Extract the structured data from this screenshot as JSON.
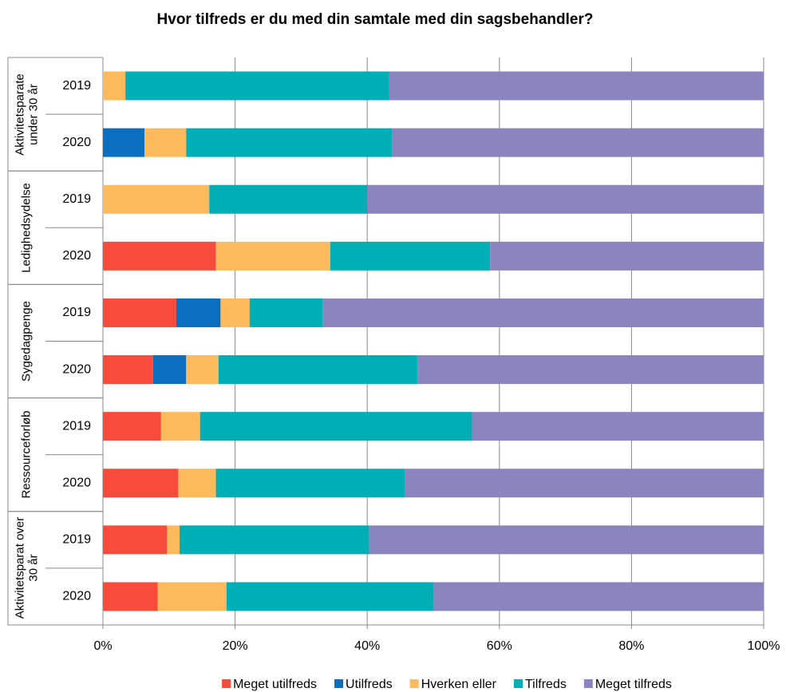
{
  "chart_data": {
    "type": "stacked-barh",
    "title": "Hvor tilfreds er du med din samtale med din sagsbehandler?",
    "groups": [
      {
        "name": "Aktivitetsparate under 30 år",
        "categories": [
          "2019",
          "2020"
        ]
      },
      {
        "name": "Ledighedsydelse",
        "categories": [
          "2019",
          "2020"
        ]
      },
      {
        "name": "Sygedagpenge",
        "categories": [
          "2019",
          "2020"
        ]
      },
      {
        "name": "Ressourceforløb",
        "categories": [
          "2019",
          "2020"
        ]
      },
      {
        "name": "Aktivitetsparat over 30 år",
        "categories": [
          "2019",
          "2020"
        ]
      }
    ],
    "series": [
      {
        "name": "Meget utilfreds",
        "color": "#f94b3b",
        "values": [
          0,
          0,
          0,
          17.1,
          11.1,
          7.6,
          8.8,
          11.4,
          9.7,
          8.3
        ]
      },
      {
        "name": "Utilfreds",
        "color": "#0b6fc1",
        "values": [
          0,
          6.3,
          0,
          0,
          6.7,
          5.0,
          0,
          0,
          0,
          0
        ]
      },
      {
        "name": "Hverken eller",
        "color": "#fdba5c",
        "values": [
          3.4,
          6.3,
          16.1,
          17.3,
          4.4,
          4.9,
          5.9,
          5.7,
          1.9,
          10.4
        ]
      },
      {
        "name": "Tilfreds",
        "color": "#00aeb6",
        "values": [
          39.9,
          31.2,
          23.9,
          24.2,
          11.1,
          30.1,
          41.2,
          28.6,
          28.7,
          31.3
        ]
      },
      {
        "name": "Meget tilfreds",
        "color": "#8a85bf",
        "values": [
          56.7,
          56.2,
          60.0,
          41.4,
          66.7,
          52.4,
          44.1,
          54.3,
          59.7,
          50.0
        ]
      }
    ],
    "xlim": [
      0,
      100
    ],
    "xticks": [
      {
        "value": 0,
        "label": "0%"
      },
      {
        "value": 20,
        "label": "20%"
      },
      {
        "value": 40,
        "label": "40%"
      },
      {
        "value": 60,
        "label": "60%"
      },
      {
        "value": 80,
        "label": "80%"
      },
      {
        "value": 100,
        "label": "100%"
      }
    ],
    "grid": true,
    "legend": "bottom"
  }
}
